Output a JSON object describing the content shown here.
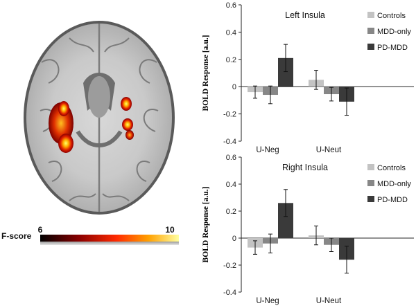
{
  "colorbar": {
    "label": "F-score",
    "min": 6,
    "max": 10
  },
  "chart_data": [
    {
      "type": "bar",
      "title": "Left Insula",
      "ylabel": "BOLD Response [a.u.]",
      "ylim": [
        -0.4,
        0.6
      ],
      "yticks": [
        "-0.4",
        "-0.2",
        "0",
        "0.2",
        "0.4",
        "0.6"
      ],
      "categories": [
        "U-Neg",
        "U-Neut"
      ],
      "legend_position": "top-right",
      "grid": false,
      "series": [
        {
          "name": "Controls",
          "color": "#c3c3c3",
          "values": [
            -0.04,
            0.05
          ],
          "errors": [
            0.045,
            0.07
          ]
        },
        {
          "name": "MDD-only",
          "color": "#878787",
          "values": [
            -0.06,
            -0.055
          ],
          "errors": [
            0.065,
            0.05
          ]
        },
        {
          "name": "PD-MDD",
          "color": "#3a3a3a",
          "values": [
            0.21,
            -0.11
          ],
          "errors": [
            0.1,
            0.1
          ]
        }
      ]
    },
    {
      "type": "bar",
      "title": "Right Insula",
      "ylabel": "BOLD Response [a.u.]",
      "ylim": [
        -0.4,
        0.6
      ],
      "yticks": [
        "-0.4",
        "-0.2",
        "0",
        "0.2",
        "0.4",
        "0.6"
      ],
      "categories": [
        "U-Neg",
        "U-Neut"
      ],
      "legend_position": "top-right",
      "grid": false,
      "series": [
        {
          "name": "Controls",
          "color": "#c3c3c3",
          "values": [
            -0.07,
            0.02
          ],
          "errors": [
            0.05,
            0.07
          ]
        },
        {
          "name": "MDD-only",
          "color": "#878787",
          "values": [
            -0.04,
            -0.05
          ],
          "errors": [
            0.07,
            0.05
          ]
        },
        {
          "name": "PD-MDD",
          "color": "#3a3a3a",
          "values": [
            0.26,
            -0.16
          ],
          "errors": [
            0.1,
            0.1
          ]
        }
      ]
    }
  ]
}
